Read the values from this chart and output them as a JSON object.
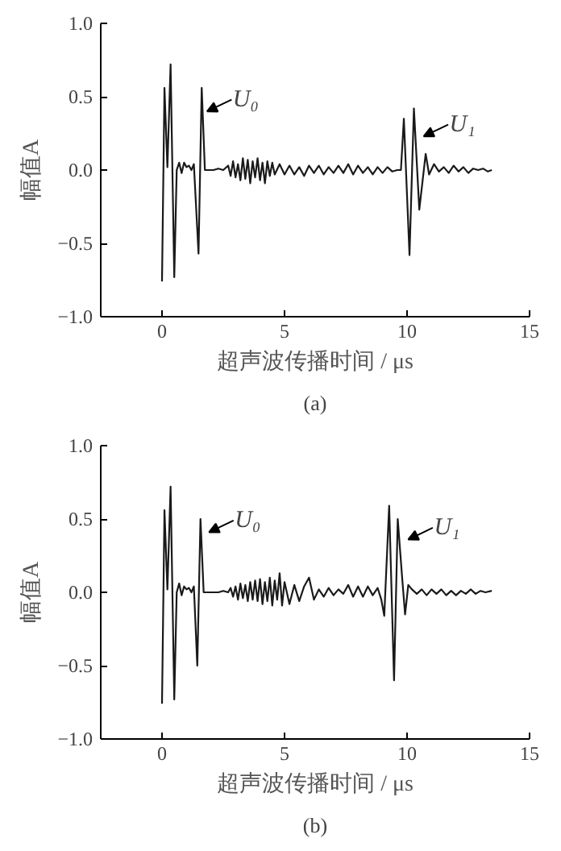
{
  "chart_data": [
    {
      "type": "line",
      "xlabel": "超声波传播时间 / μs",
      "ylabel": "幅值A",
      "xlim": [
        -2.5,
        15
      ],
      "ylim": [
        -1.0,
        1.0
      ],
      "xticks": [
        0,
        5,
        10,
        15
      ],
      "yticks": [
        {
          "value": -1.0,
          "label": "−1.0"
        },
        {
          "value": -0.5,
          "label": "−0.5"
        },
        {
          "value": 0,
          "label": "0.0"
        },
        {
          "value": 0.5,
          "label": "0.5"
        },
        {
          "value": 1.0,
          "label": "1.0"
        }
      ],
      "grid": false,
      "line_style": "solid",
      "series": [
        {
          "color": "#1a1a1a",
          "x": [
            0.0,
            0.1,
            0.22,
            0.35,
            0.5,
            0.6,
            0.7,
            0.8,
            0.9,
            1.0,
            1.1,
            1.2,
            1.3,
            1.49,
            1.62,
            1.75,
            1.9,
            2.1,
            2.3,
            2.5,
            2.7,
            2.8,
            2.9,
            3.0,
            3.1,
            3.2,
            3.3,
            3.4,
            3.5,
            3.6,
            3.7,
            3.8,
            3.9,
            4.0,
            4.1,
            4.2,
            4.3,
            4.4,
            4.5,
            4.6,
            4.8,
            5.0,
            5.2,
            5.4,
            5.6,
            5.8,
            6.0,
            6.2,
            6.4,
            6.6,
            6.8,
            7.0,
            7.2,
            7.4,
            7.6,
            7.8,
            8.0,
            8.2,
            8.4,
            8.6,
            8.8,
            9.0,
            9.2,
            9.4,
            9.6,
            9.75,
            9.87,
            10.1,
            10.28,
            10.5,
            10.76,
            10.9,
            11.1,
            11.3,
            11.5,
            11.7,
            11.9,
            12.1,
            12.3,
            12.5,
            12.7,
            12.9,
            13.1,
            13.3,
            13.46
          ],
          "values": [
            -0.76,
            0.56,
            0.02,
            0.72,
            -0.73,
            0.0,
            0.05,
            -0.02,
            0.05,
            0.02,
            0.03,
            0.0,
            0.04,
            -0.57,
            0.56,
            0.0,
            0.0,
            0.0,
            0.01,
            0.0,
            0.03,
            -0.04,
            0.06,
            -0.05,
            0.04,
            -0.07,
            0.08,
            -0.06,
            0.07,
            -0.09,
            0.06,
            -0.05,
            0.08,
            -0.07,
            0.05,
            -0.09,
            0.06,
            -0.04,
            0.05,
            -0.03,
            0.04,
            -0.03,
            0.03,
            -0.03,
            0.02,
            -0.04,
            0.03,
            -0.02,
            0.03,
            -0.03,
            0.02,
            -0.02,
            0.03,
            -0.02,
            0.04,
            -0.03,
            0.03,
            -0.02,
            0.02,
            -0.03,
            0.02,
            -0.02,
            0.02,
            -0.01,
            0.0,
            0.0,
            0.35,
            -0.58,
            0.42,
            -0.27,
            0.11,
            -0.03,
            0.04,
            -0.01,
            0.02,
            -0.02,
            0.03,
            -0.01,
            0.02,
            -0.02,
            0.01,
            0.0,
            0.01,
            -0.01,
            0.0
          ]
        }
      ],
      "annotations": [
        {
          "text": "U₀",
          "x": 1.84,
          "y": 0.4
        },
        {
          "text": "U₁",
          "x": 10.68,
          "y": 0.23
        },
        "(a)"
      ]
    },
    {
      "type": "line",
      "xlabel": "超声波传播时间 / μs",
      "ylabel": "幅值A",
      "xlim": [
        -2.5,
        15
      ],
      "ylim": [
        -1.0,
        1.0
      ],
      "xticks": [
        0,
        5,
        10,
        15
      ],
      "yticks": [
        {
          "value": -1.0,
          "label": "−1.0"
        },
        {
          "value": -0.5,
          "label": "−0.5"
        },
        {
          "value": 0,
          "label": "0.0"
        },
        {
          "value": 0.5,
          "label": "0.5"
        },
        {
          "value": 1.0,
          "label": "1.0"
        }
      ],
      "grid": false,
      "line_style": "solid",
      "series": [
        {
          "color": "#1a1a1a",
          "x": [
            0.0,
            0.1,
            0.22,
            0.35,
            0.5,
            0.6,
            0.7,
            0.8,
            0.9,
            1.0,
            1.1,
            1.2,
            1.3,
            1.44,
            1.57,
            1.7,
            1.9,
            2.1,
            2.3,
            2.5,
            2.7,
            2.8,
            2.9,
            3.0,
            3.1,
            3.2,
            3.3,
            3.4,
            3.5,
            3.6,
            3.7,
            3.8,
            3.9,
            4.0,
            4.1,
            4.2,
            4.3,
            4.4,
            4.5,
            4.6,
            4.7,
            4.8,
            4.9,
            5.0,
            5.2,
            5.4,
            5.6,
            5.8,
            6.0,
            6.2,
            6.4,
            6.6,
            6.8,
            7.0,
            7.2,
            7.4,
            7.6,
            7.8,
            8.0,
            8.2,
            8.4,
            8.6,
            8.8,
            8.95,
            9.07,
            9.27,
            9.47,
            9.62,
            9.8,
            9.92,
            10.05,
            10.2,
            10.4,
            10.6,
            10.8,
            11.0,
            11.2,
            11.4,
            11.6,
            11.8,
            12.0,
            12.2,
            12.4,
            12.6,
            12.8,
            13.0,
            13.2,
            13.46
          ],
          "values": [
            -0.76,
            0.56,
            0.02,
            0.72,
            -0.73,
            0.0,
            0.06,
            -0.02,
            0.04,
            0.02,
            0.03,
            0.0,
            0.04,
            -0.5,
            0.5,
            0.0,
            0.0,
            0.0,
            0.0,
            0.01,
            0.0,
            0.03,
            -0.03,
            0.04,
            -0.05,
            0.06,
            -0.04,
            0.05,
            -0.06,
            0.07,
            -0.05,
            0.08,
            -0.06,
            0.09,
            -0.08,
            0.07,
            -0.06,
            0.1,
            -0.09,
            0.08,
            -0.05,
            0.13,
            -0.09,
            0.07,
            -0.08,
            0.05,
            -0.06,
            0.04,
            0.1,
            -0.05,
            0.02,
            -0.03,
            0.03,
            -0.02,
            0.02,
            -0.01,
            0.05,
            -0.03,
            0.04,
            -0.03,
            0.04,
            -0.02,
            0.03,
            -0.05,
            -0.16,
            0.59,
            -0.6,
            0.5,
            0.1,
            -0.15,
            0.05,
            0.02,
            -0.01,
            0.02,
            -0.02,
            0.02,
            -0.01,
            0.02,
            -0.02,
            0.01,
            -0.02,
            0.01,
            -0.01,
            0.02,
            -0.01,
            0.01,
            0.0,
            0.01
          ]
        }
      ],
      "annotations": [
        {
          "text": "U₀",
          "x": 1.92,
          "y": 0.41
        },
        {
          "text": "U₁",
          "x": 10.05,
          "y": 0.36
        },
        "(b)"
      ]
    }
  ]
}
